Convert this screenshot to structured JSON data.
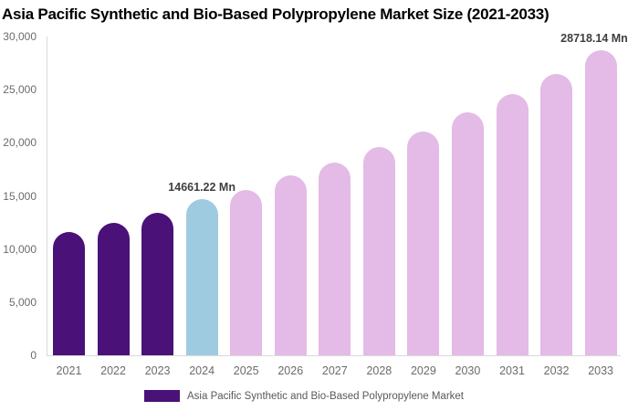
{
  "chart_data": {
    "type": "bar",
    "title": "Asia Pacific Synthetic and Bio-Based Polypropylene Market Size (2021-2033)",
    "categories": [
      "2021",
      "2022",
      "2023",
      "2024",
      "2025",
      "2026",
      "2027",
      "2028",
      "2029",
      "2030",
      "2031",
      "2032",
      "2033"
    ],
    "values": [
      11600,
      12450,
      13400,
      14661.22,
      15550,
      16900,
      18150,
      19600,
      21050,
      22850,
      24550,
      26450,
      28718.14
    ],
    "unit": "Mn",
    "xlabel": "",
    "ylabel": "",
    "ylim": [
      0,
      30000
    ],
    "ytick_values": [
      0,
      5000,
      10000,
      15000,
      20000,
      25000,
      30000
    ],
    "ytick_labels": [
      "0",
      "5,000",
      "10,000",
      "15,000",
      "20,000",
      "25,000",
      "30,000"
    ],
    "grid": "off",
    "legend_position": "bottom",
    "legend_entries": [
      "Asia Pacific Synthetic and Bio-Based Polypropylene Market"
    ],
    "data_labels": [
      {
        "index": 3,
        "text": "14661.22 Mn"
      },
      {
        "index": 12,
        "text": "28718.14 Mn"
      }
    ],
    "series_colors": {
      "historical_2021_2023": "#4A1178",
      "current_2024": "#9ECBDF",
      "forecast_2025_2033": "#E4BAE6"
    },
    "axis_line_color": "#D9D9D9",
    "tick_text_color": "#6B6B6B",
    "data_label_color": "#3F3F3F",
    "legend_text_color": "#595959"
  }
}
